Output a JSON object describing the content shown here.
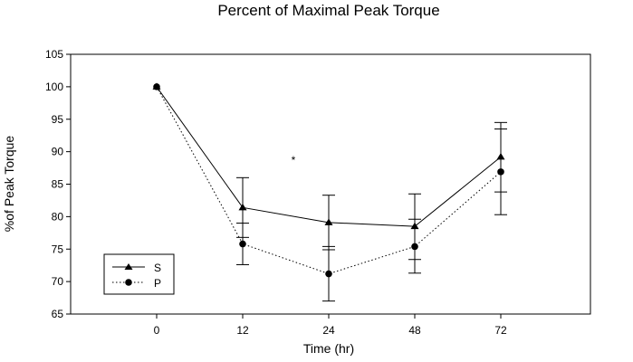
{
  "chart_data": {
    "type": "line",
    "title": "Percent of Maximal Peak Torque",
    "xlabel": "Time (hr)",
    "ylabel": "%of Peak Torque",
    "categories": [
      "0",
      "12",
      "24",
      "48",
      "72"
    ],
    "ylim": [
      65,
      105
    ],
    "yticks": [
      "65",
      "70",
      "75",
      "80",
      "85",
      "90",
      "95",
      "100",
      "105"
    ],
    "grid": false,
    "legend_position": "bottom-left",
    "annotation": "*",
    "series": [
      {
        "name": "S",
        "marker": "triangle",
        "line_style": "solid",
        "values": [
          100,
          81.4,
          79.1,
          78.5,
          89.2
        ],
        "error_bars": [
          null,
          [
            76.8,
            86.0
          ],
          [
            74.9,
            83.3
          ],
          [
            73.4,
            83.5
          ],
          [
            83.8,
            94.5
          ]
        ]
      },
      {
        "name": "P",
        "marker": "circle",
        "line_style": "dotted",
        "values": [
          100,
          75.8,
          71.2,
          75.4,
          86.9
        ],
        "error_bars": [
          null,
          [
            72.6,
            79.0
          ],
          [
            67.0,
            75.4
          ],
          [
            71.3,
            79.6
          ],
          [
            80.3,
            93.5
          ]
        ]
      }
    ]
  }
}
